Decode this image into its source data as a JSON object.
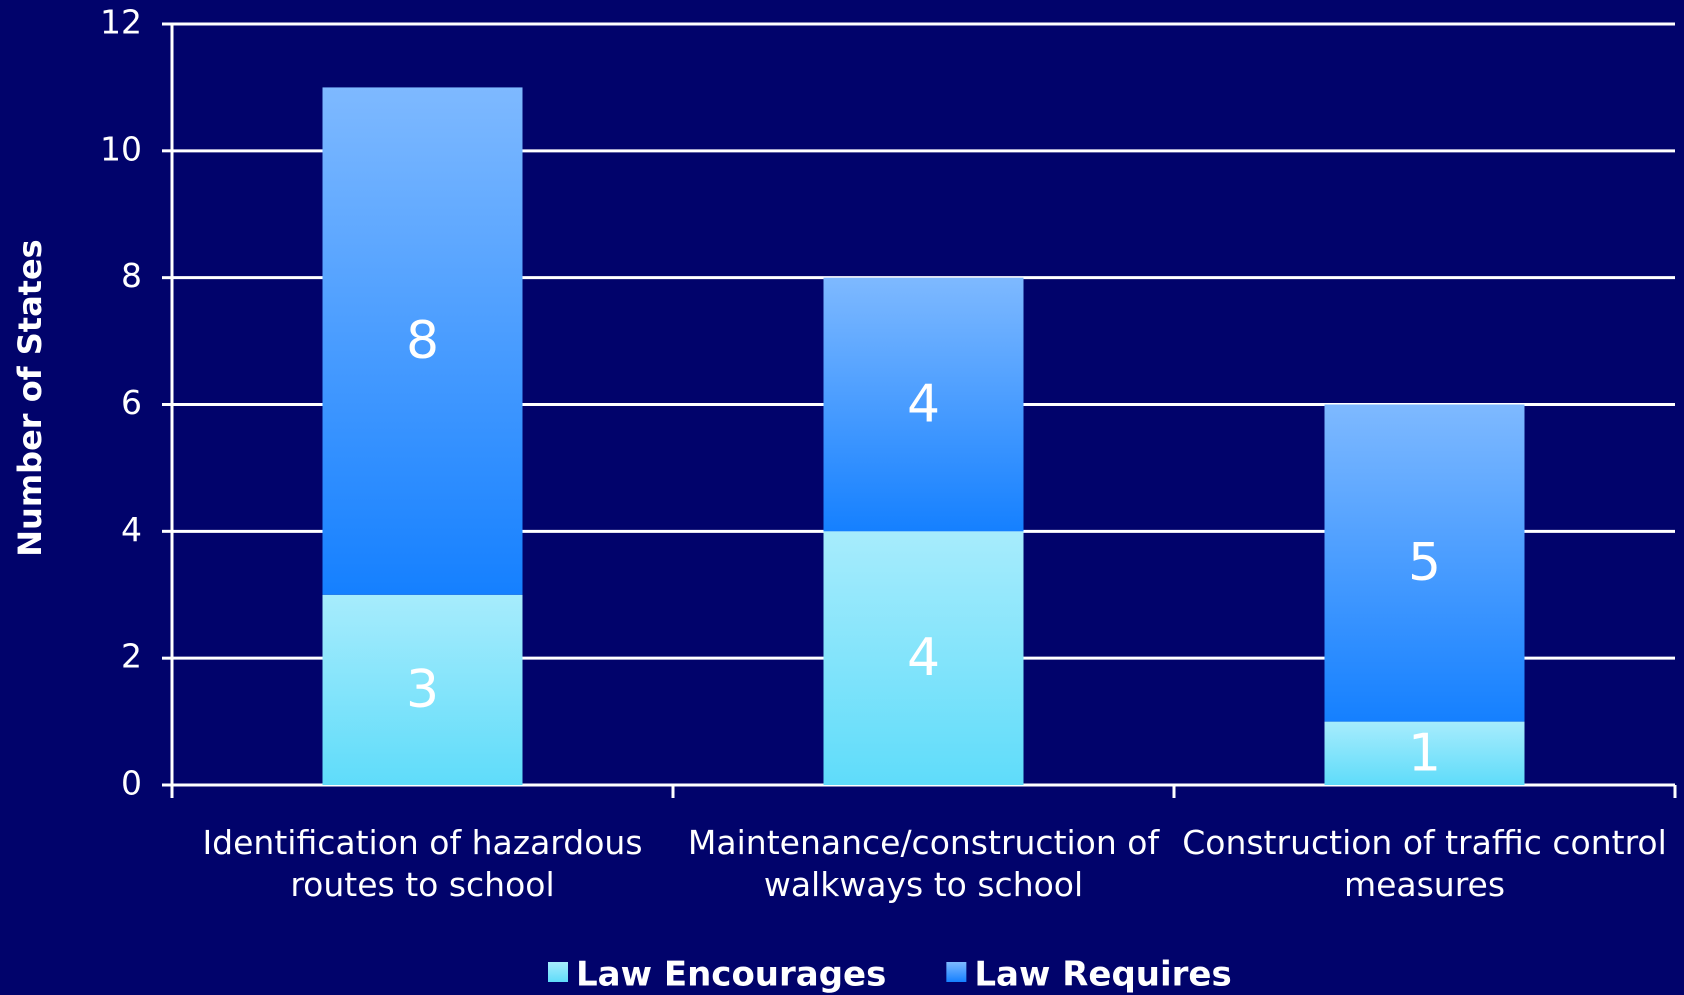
{
  "chart_data": {
    "type": "stacked_bar",
    "y_label": "Number of States",
    "categories": [
      "Identification of hazardous routes to school",
      "Maintenance/construction of walkways to school",
      "Construction of traffic control measures"
    ],
    "series": [
      {
        "name": "Law Encourages",
        "color": "#5fdcfa",
        "values": [
          3,
          4,
          1
        ]
      },
      {
        "name": "Law Requires",
        "color": "#1580ff",
        "values": [
          8,
          4,
          5
        ]
      }
    ],
    "ylim": [
      0,
      12
    ],
    "yticks": [
      0,
      2,
      4,
      6,
      8,
      10,
      12
    ],
    "grid": true,
    "legend": "bottom"
  }
}
